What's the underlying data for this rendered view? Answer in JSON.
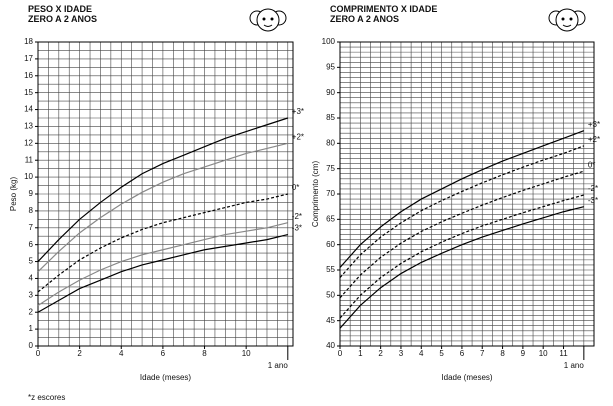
{
  "chart_data": [
    {
      "type": "line",
      "title": "PESO X IDADE",
      "subtitle": "ZERO A 2 ANOS",
      "xlabel": "Idade (meses)",
      "ylabel": "Peso (kg)",
      "x": [
        0,
        1,
        2,
        3,
        4,
        5,
        6,
        7,
        8,
        9,
        10,
        11,
        12
      ],
      "series": [
        {
          "name": "+3*",
          "color": "#000000",
          "dash": false,
          "values": [
            5.0,
            6.3,
            7.5,
            8.5,
            9.4,
            10.2,
            10.8,
            11.3,
            11.8,
            12.3,
            12.7,
            13.1,
            13.5
          ]
        },
        {
          "name": "+2*",
          "color": "#888888",
          "dash": false,
          "values": [
            4.4,
            5.6,
            6.7,
            7.6,
            8.4,
            9.1,
            9.7,
            10.2,
            10.6,
            11.0,
            11.4,
            11.7,
            12.0
          ]
        },
        {
          "name": "0*",
          "color": "#000000",
          "dash": true,
          "values": [
            3.2,
            4.2,
            5.1,
            5.8,
            6.4,
            6.9,
            7.3,
            7.6,
            7.9,
            8.2,
            8.5,
            8.7,
            9.0
          ]
        },
        {
          "name": "-2*",
          "color": "#888888",
          "dash": false,
          "values": [
            2.4,
            3.2,
            3.9,
            4.5,
            5.0,
            5.4,
            5.7,
            6.0,
            6.3,
            6.6,
            6.8,
            7.0,
            7.3
          ]
        },
        {
          "name": "-3*",
          "color": "#000000",
          "dash": false,
          "values": [
            2.0,
            2.7,
            3.4,
            3.9,
            4.4,
            4.8,
            5.1,
            5.4,
            5.7,
            5.9,
            6.1,
            6.3,
            6.6
          ]
        }
      ],
      "xlim": [
        0,
        12.25
      ],
      "xticks": [
        0,
        2,
        4,
        6,
        8,
        10,
        {
          "value": 12,
          "label": "1 ano"
        }
      ],
      "ylim": [
        0,
        18
      ],
      "yticks": [
        0,
        1,
        2,
        3,
        4,
        5,
        6,
        7,
        8,
        9,
        10,
        11,
        12,
        13,
        14,
        15,
        16,
        17,
        18
      ],
      "xminor": 0.5,
      "yminor": 0.5,
      "grid": true
    },
    {
      "type": "line",
      "title": "COMPRIMENTO X IDADE",
      "subtitle": "ZERO A 2 ANOS",
      "xlabel": "Idade (meses)",
      "ylabel": "Comprimento (cm)",
      "x": [
        0,
        1,
        2,
        3,
        4,
        5,
        6,
        7,
        8,
        9,
        10,
        11,
        12
      ],
      "series": [
        {
          "name": "+3*",
          "color": "#000000",
          "dash": false,
          "values": [
            55.5,
            60,
            63.5,
            66.5,
            69,
            71,
            73,
            74.8,
            76.5,
            78,
            79.5,
            81,
            82.5
          ]
        },
        {
          "name": "+2*",
          "color": "#000000",
          "dash": true,
          "values": [
            53.5,
            58,
            61.5,
            64.3,
            66.7,
            68.7,
            70.5,
            72.2,
            73.8,
            75.3,
            76.7,
            78,
            79.5
          ]
        },
        {
          "name": "0*",
          "color": "#000000",
          "dash": true,
          "values": [
            49.5,
            54,
            57.5,
            60.3,
            62.6,
            64.5,
            66.2,
            67.8,
            69.3,
            70.7,
            72,
            73.3,
            74.5
          ]
        },
        {
          "name": "-2*",
          "color": "#000000",
          "dash": true,
          "values": [
            45.5,
            50,
            53.5,
            56.3,
            58.6,
            60.5,
            62.2,
            63.7,
            65,
            66.3,
            67.5,
            68.7,
            69.8
          ]
        },
        {
          "name": "-3*",
          "color": "#000000",
          "dash": false,
          "values": [
            43.5,
            48,
            51.5,
            54.3,
            56.5,
            58.3,
            60,
            61.5,
            62.8,
            64.1,
            65.3,
            66.5,
            67.5
          ]
        }
      ],
      "xlim": [
        0,
        12.5
      ],
      "xticks": [
        0,
        1,
        2,
        3,
        4,
        5,
        6,
        7,
        8,
        9,
        10,
        11,
        {
          "value": 12,
          "label": "1 ano"
        }
      ],
      "ylim": [
        40,
        100
      ],
      "yticks": [
        40,
        45,
        50,
        55,
        60,
        65,
        70,
        75,
        80,
        85,
        90,
        95,
        100
      ],
      "xminor": 0.5,
      "yminor": 1,
      "grid": true
    }
  ],
  "footnote": "*z escores"
}
